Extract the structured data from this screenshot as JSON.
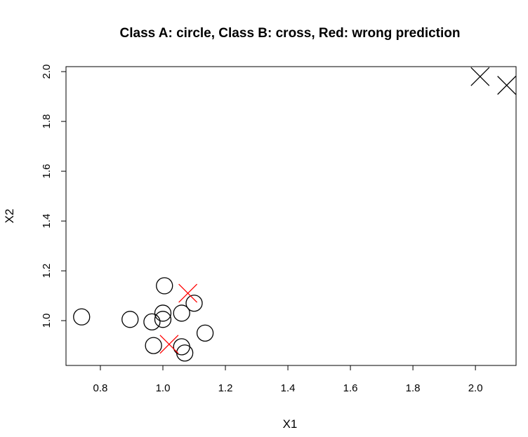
{
  "chart_data": {
    "type": "scatter",
    "title": "Class A: circle, Class B: cross, Red: wrong prediction",
    "xlabel": "X1",
    "ylabel": "X2",
    "xlim": [
      0.69,
      2.13
    ],
    "ylim": [
      0.82,
      2.02
    ],
    "xticks": [
      "0.8",
      "1.0",
      "1.2",
      "1.4",
      "1.6",
      "1.8",
      "2.0"
    ],
    "yticks": [
      "1.0",
      "1.2",
      "1.4",
      "1.6",
      "1.8",
      "2.0"
    ],
    "grid": false,
    "colors": {
      "correct": "#000000",
      "wrong": "#ff0000"
    },
    "series": [
      {
        "name": "Class A",
        "marker": "circle",
        "points": [
          {
            "x": 0.74,
            "y": 1.015,
            "wrong": false
          },
          {
            "x": 0.895,
            "y": 1.005,
            "wrong": false
          },
          {
            "x": 0.965,
            "y": 0.995,
            "wrong": false
          },
          {
            "x": 0.97,
            "y": 0.9,
            "wrong": false
          },
          {
            "x": 1.0,
            "y": 1.03,
            "wrong": false
          },
          {
            "x": 1.0,
            "y": 1.005,
            "wrong": false
          },
          {
            "x": 1.005,
            "y": 1.14,
            "wrong": false
          },
          {
            "x": 1.06,
            "y": 1.03,
            "wrong": false
          },
          {
            "x": 1.06,
            "y": 0.895,
            "wrong": false
          },
          {
            "x": 1.07,
            "y": 0.87,
            "wrong": false
          },
          {
            "x": 1.1,
            "y": 1.07,
            "wrong": false
          },
          {
            "x": 1.135,
            "y": 0.95,
            "wrong": false
          }
        ]
      },
      {
        "name": "Class B",
        "marker": "cross",
        "points": [
          {
            "x": 2.015,
            "y": 1.98,
            "wrong": false
          },
          {
            "x": 2.1,
            "y": 1.945,
            "wrong": false
          },
          {
            "x": 1.08,
            "y": 1.11,
            "wrong": true
          },
          {
            "x": 1.02,
            "y": 0.905,
            "wrong": true
          }
        ]
      }
    ]
  }
}
